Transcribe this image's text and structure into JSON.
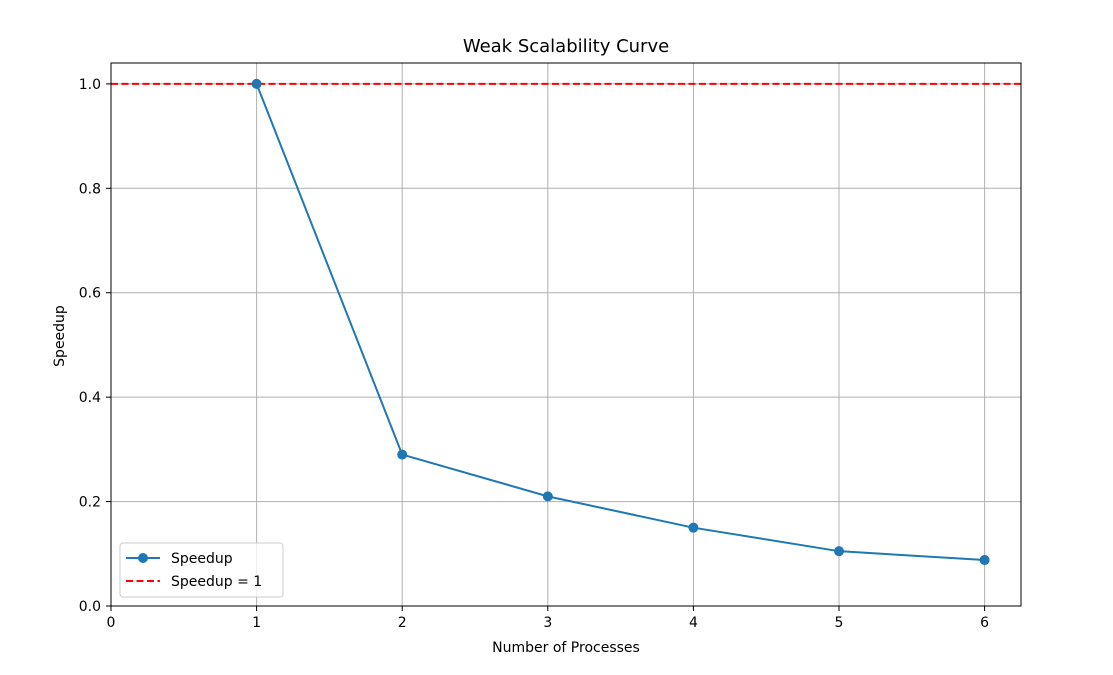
{
  "chart_data": {
    "type": "line",
    "title": "Weak Scalability Curve",
    "xlabel": "Number of Processes",
    "ylabel": "Speedup",
    "xlim": [
      0,
      6.25
    ],
    "ylim": [
      0,
      1.04
    ],
    "x_ticks": [
      0,
      1,
      2,
      3,
      4,
      5,
      6
    ],
    "x_tick_labels": [
      "0",
      "1",
      "2",
      "3",
      "4",
      "5",
      "6"
    ],
    "y_ticks": [
      0.0,
      0.2,
      0.4,
      0.6,
      0.8,
      1.0
    ],
    "y_tick_labels": [
      "0.0",
      "0.2",
      "0.4",
      "0.6",
      "0.8",
      "1.0"
    ],
    "grid": true,
    "legend_position": "lower-left",
    "series": [
      {
        "name": "Speedup",
        "x": [
          1,
          2,
          3,
          4,
          5,
          6
        ],
        "y": [
          1.0,
          0.29,
          0.21,
          0.15,
          0.105,
          0.088
        ],
        "color": "#1f77b4",
        "marker": "circle",
        "line_style": "solid"
      }
    ],
    "reference_lines": [
      {
        "name": "Speedup = 1",
        "y": 1.0,
        "color": "#ff0000",
        "line_style": "dashed"
      }
    ]
  }
}
